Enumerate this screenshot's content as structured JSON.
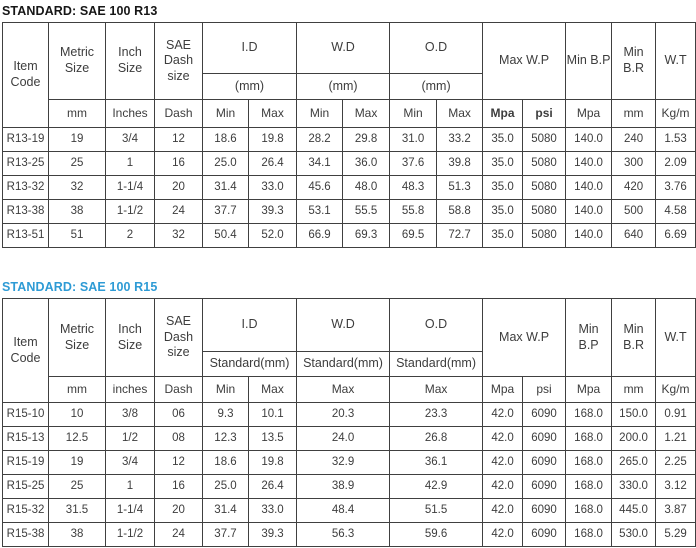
{
  "colors": {
    "accent_blue_title": "#2e9bd5",
    "table_border": "#404040",
    "body_text": "#3d3d3d",
    "title1_text": "#161616"
  },
  "table1": {
    "title": "STANDARD: SAE 100 R13",
    "header": {
      "item_code": "Item\nCode",
      "metric_size": "Metric\nSize",
      "inch_size": "Inch\nSize",
      "sae_dash_size": "SAE\nDash\nsize",
      "id": "I.D",
      "wd": "W.D",
      "od": "O.D",
      "id_unit": "(mm)",
      "wd_unit": "(mm)",
      "od_unit": "(mm)",
      "max_wp": "Max W.P",
      "min_bp": "Min B.P",
      "min_br": "Min\nB.R",
      "wt": "W.T"
    },
    "units": [
      "mm",
      "Inches",
      "Dash",
      "Min",
      "Max",
      "Min",
      "Max",
      "Min",
      "Max",
      "Mpa",
      "psi",
      "Mpa",
      "mm",
      "Kg/m"
    ],
    "rows": [
      [
        "R13-19",
        "19",
        "3/4",
        "12",
        "18.6",
        "19.8",
        "28.2",
        "29.8",
        "31.0",
        "33.2",
        "35.0",
        "5080",
        "140.0",
        "240",
        "1.53"
      ],
      [
        "R13-25",
        "25",
        "1",
        "16",
        "25.0",
        "26.4",
        "34.1",
        "36.0",
        "37.6",
        "39.8",
        "35.0",
        "5080",
        "140.0",
        "300",
        "2.09"
      ],
      [
        "R13-32",
        "32",
        "1-1/4",
        "20",
        "31.4",
        "33.0",
        "45.6",
        "48.0",
        "48.3",
        "51.3",
        "35.0",
        "5080",
        "140.0",
        "420",
        "3.76"
      ],
      [
        "R13-38",
        "38",
        "1-1/2",
        "24",
        "37.7",
        "39.3",
        "53.1",
        "55.5",
        "55.8",
        "58.8",
        "35.0",
        "5080",
        "140.0",
        "500",
        "4.58"
      ],
      [
        "R13-51",
        "51",
        "2",
        "32",
        "50.4",
        "52.0",
        "66.9",
        "69.3",
        "69.5",
        "72.7",
        "35.0",
        "5080",
        "140.0",
        "640",
        "6.69"
      ]
    ]
  },
  "table2": {
    "title": "STANDARD: SAE 100 R15",
    "header": {
      "item_code": "Item\nCode",
      "metric_size": "Metric\nSize",
      "inch_size": "Inch\nSize",
      "sae_dash_size": "SAE\nDash\nsize",
      "id": "I.D",
      "wd": "W.D",
      "od": "O.D",
      "id_unit": "Standard(mm)",
      "wd_unit": "Standard(mm)",
      "od_unit": "Standard(mm)",
      "max_wp": "Max W.P",
      "min_bp": "Min\nB.P",
      "min_br": "Min\nB.R",
      "wt": "W.T"
    },
    "units": [
      "mm",
      "inches",
      "Dash",
      "Min",
      "Max",
      "Max",
      "Max",
      "Mpa",
      "psi",
      "Mpa",
      "mm",
      "Kg/m"
    ],
    "rows": [
      [
        "R15-10",
        "10",
        "3/8",
        "06",
        "9.3",
        "10.1",
        "20.3",
        "23.3",
        "42.0",
        "6090",
        "168.0",
        "150.0",
        "0.91"
      ],
      [
        "R15-13",
        "12.5",
        "1/2",
        "08",
        "12.3",
        "13.5",
        "24.0",
        "26.8",
        "42.0",
        "6090",
        "168.0",
        "200.0",
        "1.21"
      ],
      [
        "R15-19",
        "19",
        "3/4",
        "12",
        "18.6",
        "19.8",
        "32.9",
        "36.1",
        "42.0",
        "6090",
        "168.0",
        "265.0",
        "2.25"
      ],
      [
        "R15-25",
        "25",
        "1",
        "16",
        "25.0",
        "26.4",
        "38.9",
        "42.9",
        "42.0",
        "6090",
        "168.0",
        "330.0",
        "3.12"
      ],
      [
        "R15-32",
        "31.5",
        "1-1/4",
        "20",
        "31.4",
        "33.0",
        "48.4",
        "51.5",
        "42.0",
        "6090",
        "168.0",
        "445.0",
        "3.87"
      ],
      [
        "R15-38",
        "38",
        "1-1/2",
        "24",
        "37.7",
        "39.3",
        "56.3",
        "59.6",
        "42.0",
        "6090",
        "168.0",
        "530.0",
        "5.29"
      ]
    ]
  }
}
